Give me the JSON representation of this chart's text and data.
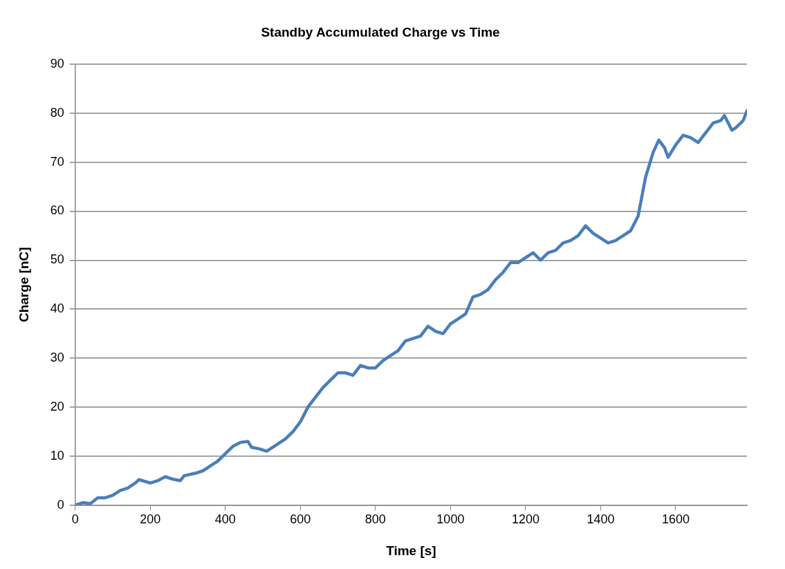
{
  "chart_data": {
    "type": "line",
    "title": "Standby Accumulated Charge vs Time",
    "xlabel": "Time [s]",
    "ylabel": "Charge [nC]",
    "xlim": [
      0,
      1790
    ],
    "xticks": [
      0,
      200,
      400,
      600,
      800,
      1000,
      1200,
      1400,
      1600
    ],
    "ylim": [
      0,
      90
    ],
    "yticks": [
      0,
      10,
      20,
      30,
      40,
      50,
      60,
      70,
      80,
      90
    ],
    "grid": "y",
    "legend": false,
    "marker": "none",
    "line_style": "solid",
    "series": [
      {
        "color": "#4a7ebb",
        "x": [
          0,
          20,
          40,
          60,
          80,
          100,
          120,
          140,
          160,
          170,
          200,
          220,
          240,
          260,
          280,
          290,
          320,
          340,
          360,
          380,
          400,
          420,
          440,
          460,
          470,
          490,
          510,
          530,
          560,
          580,
          600,
          620,
          640,
          660,
          680,
          700,
          720,
          740,
          760,
          780,
          800,
          820,
          840,
          860,
          880,
          900,
          920,
          940,
          960,
          980,
          1000,
          1020,
          1040,
          1060,
          1080,
          1100,
          1120,
          1140,
          1160,
          1180,
          1200,
          1220,
          1240,
          1260,
          1280,
          1300,
          1320,
          1340,
          1360,
          1380,
          1400,
          1420,
          1440,
          1460,
          1480,
          1500,
          1510,
          1520,
          1540,
          1555,
          1570,
          1580,
          1600,
          1620,
          1640,
          1660,
          1680,
          1700,
          1720,
          1730,
          1750,
          1760,
          1780,
          1790
        ],
        "values": [
          0,
          0.5,
          0.3,
          1.5,
          1.5,
          2,
          3,
          3.5,
          4.5,
          5.2,
          4.5,
          5,
          5.8,
          5.3,
          5,
          6,
          6.5,
          7,
          8,
          9,
          10.5,
          12,
          12.8,
          13,
          11.8,
          11.5,
          11,
          12,
          13.5,
          15,
          17,
          20,
          22,
          24,
          25.5,
          27,
          27,
          26.5,
          28.5,
          28,
          28,
          29.5,
          30.5,
          31.5,
          33.5,
          34,
          34.5,
          36.5,
          35.5,
          35,
          37,
          38,
          39,
          42.5,
          43,
          44,
          46,
          47.5,
          49.5,
          49.5,
          50.5,
          51.5,
          50,
          51.5,
          52,
          53.5,
          54,
          55,
          57,
          55.5,
          54.5,
          53.5,
          54,
          55,
          56,
          59,
          63,
          67,
          72,
          74.5,
          73,
          71,
          73.5,
          75.5,
          75,
          74,
          76,
          78,
          78.5,
          79.5,
          76.5,
          77,
          78.5,
          80.5
        ]
      }
    ]
  }
}
